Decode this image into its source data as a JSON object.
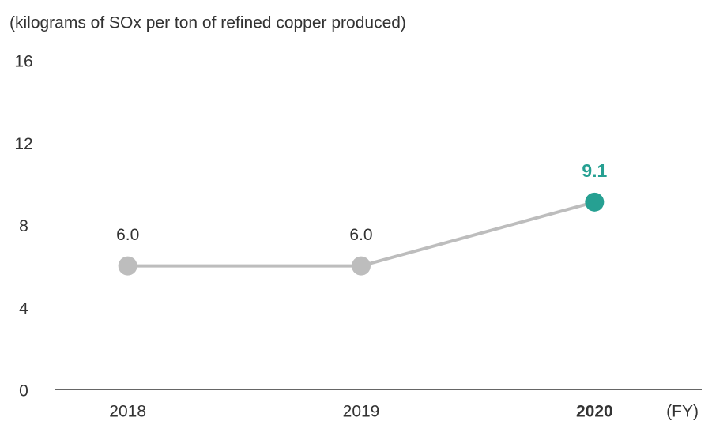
{
  "chart_data": {
    "type": "line",
    "y_label": "(kilograms of SOx per ton of refined copper produced)",
    "x_label": "(FY)",
    "categories": [
      "2018",
      "2019",
      "2020"
    ],
    "values": [
      6.0,
      6.0,
      9.1
    ],
    "value_labels": [
      "6.0",
      "6.0",
      "9.1"
    ],
    "color": "#bdbdbd",
    "point_colors": [
      "#bdbdbd",
      "#bdbdbd",
      "#26a092"
    ],
    "ylim": [
      0,
      16
    ],
    "yticks": [
      0,
      4,
      8,
      12,
      16
    ]
  }
}
